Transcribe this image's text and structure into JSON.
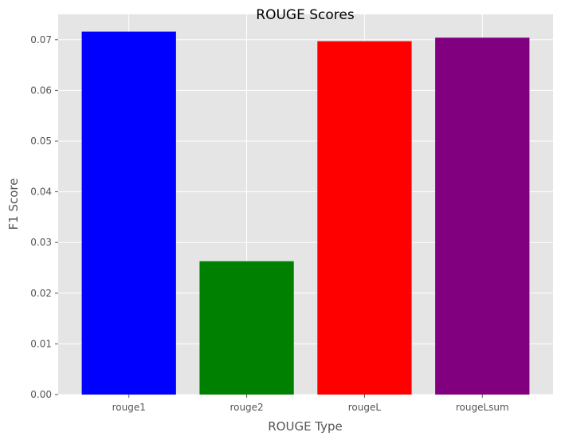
{
  "chart_data": {
    "type": "bar",
    "title": "ROUGE Scores",
    "xlabel": "ROUGE Type",
    "ylabel": "F1 Score",
    "categories": [
      "rouge1",
      "rouge2",
      "rougeL",
      "rougeLsum"
    ],
    "values": [
      0.0716,
      0.0263,
      0.0697,
      0.0704
    ],
    "colors": [
      "#0000ff",
      "#008000",
      "#ff0000",
      "#800080"
    ],
    "ylim": [
      0,
      0.075
    ],
    "yticks": [
      0.0,
      0.01,
      0.02,
      0.03,
      0.04,
      0.05,
      0.06,
      0.07
    ],
    "ytick_labels": [
      "0.00",
      "0.01",
      "0.02",
      "0.03",
      "0.04",
      "0.05",
      "0.06",
      "0.07"
    ],
    "grid": true,
    "background_color": "#e5e5e5",
    "grid_color": "#ffffff"
  }
}
